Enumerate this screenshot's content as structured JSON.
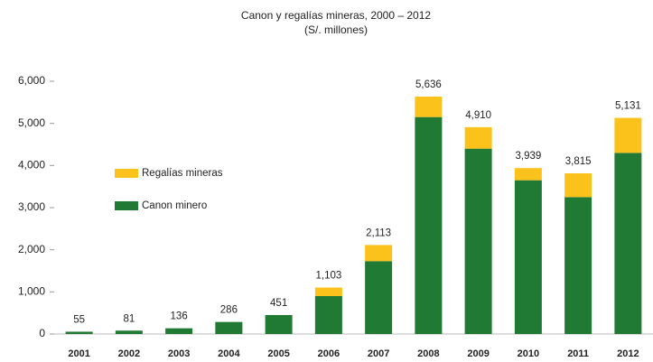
{
  "chart_data": {
    "type": "stacked_bar",
    "title": "Canon y regalías mineras, 2000 – 2012",
    "subtitle": "(S/. millones)",
    "categories": [
      "2001",
      "2002",
      "2003",
      "2004",
      "2005",
      "2006",
      "2007",
      "2008",
      "2009",
      "2010",
      "2011",
      "2012"
    ],
    "series": [
      {
        "name": "Canon minero",
        "color": "#217a34",
        "values": [
          55,
          81,
          136,
          286,
          451,
          900,
          1730,
          5150,
          4400,
          3650,
          3250,
          4300
        ]
      },
      {
        "name": "Regalías mineras",
        "color": "#fcc21c",
        "values": [
          0,
          0,
          0,
          0,
          0,
          203,
          383,
          486,
          510,
          289,
          565,
          831
        ]
      }
    ],
    "totals": {
      "values": [
        55,
        81,
        136,
        286,
        451,
        1103,
        2113,
        5636,
        4910,
        3939,
        3815,
        5131
      ],
      "value_labels": [
        "55",
        "81",
        "136",
        "286",
        "451",
        "1,103",
        "2,113",
        "5,636",
        "4,910",
        "3,939",
        "3,815",
        "5,131"
      ]
    },
    "ylim": [
      0,
      6000
    ],
    "yticks": [
      0,
      {
        "value": 1000,
        "label": "1,000"
      },
      {
        "value": 2000,
        "label": "2,000"
      },
      {
        "value": 3000,
        "label": "3,000"
      },
      {
        "value": 4000,
        "label": "4,000"
      },
      {
        "value": 5000,
        "label": "5,000"
      },
      {
        "value": 6000,
        "label": "6,000"
      }
    ],
    "grid": false
  }
}
